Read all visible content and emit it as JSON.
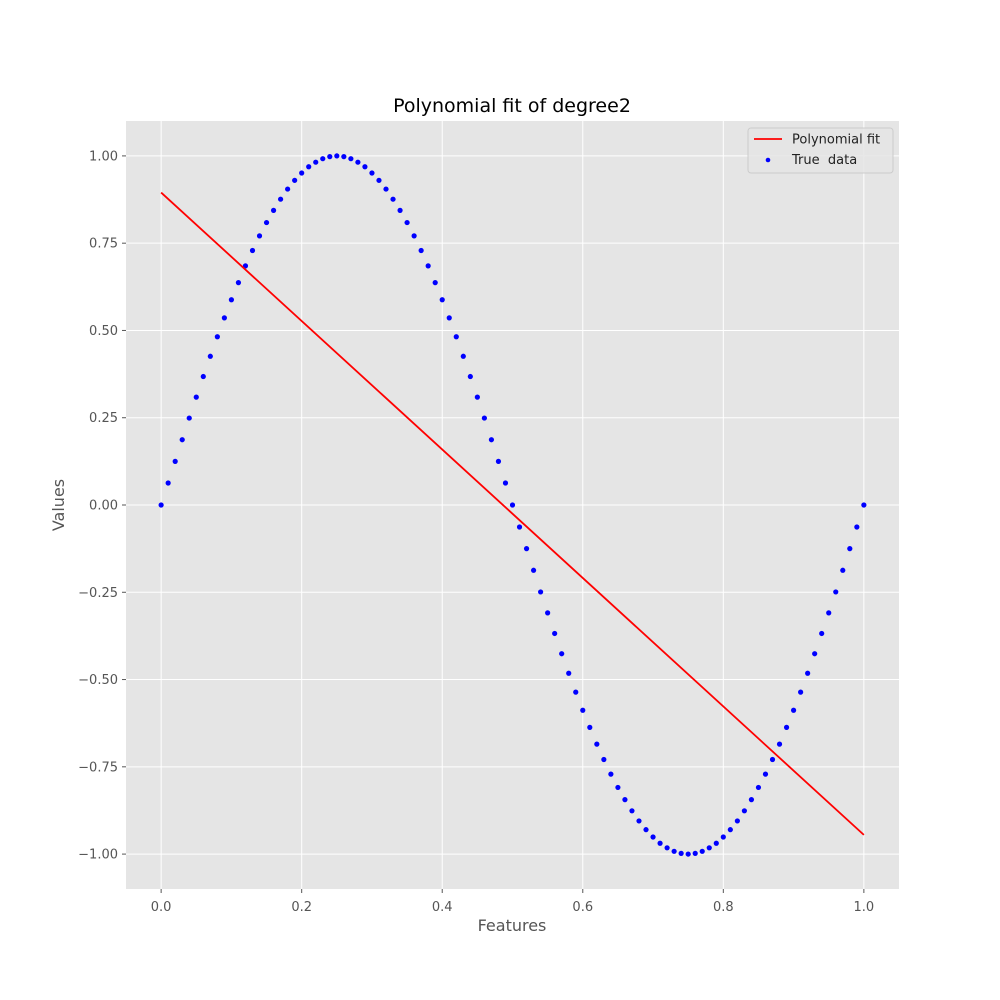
{
  "chart_data": {
    "type": "scatter",
    "title": "Polynomial fit of degree2",
    "xlabel": "Features",
    "ylabel": "Values",
    "xlim": [
      -0.05,
      1.05
    ],
    "ylim": [
      -1.1,
      1.1
    ],
    "x_ticks": [
      0.0,
      0.2,
      0.4,
      0.6,
      0.8,
      1.0
    ],
    "x_tick_labels": [
      "0.0",
      "0.2",
      "0.4",
      "0.6",
      "0.8",
      "1.0"
    ],
    "y_ticks": [
      1.0,
      0.75,
      0.5,
      0.25,
      0.0,
      -0.25,
      -0.5,
      -0.75,
      -1.0
    ],
    "y_tick_labels": [
      "1.00",
      "0.75",
      "0.50",
      "0.25",
      "0.00",
      "−0.25",
      "−0.50",
      "−0.75",
      "−1.00"
    ],
    "grid": true,
    "legend_position": "top-right",
    "background_color": "#e5e5e5",
    "grid_color": "#ffffff",
    "series": [
      {
        "name": "Polynomial fit",
        "kind": "line",
        "color": "#ff0000",
        "x": [
          0.0,
          1.0
        ],
        "y": [
          0.895,
          -0.945
        ]
      },
      {
        "name": "True  data",
        "kind": "scatter",
        "color": "#0000ff",
        "x": [
          0.0,
          0.01,
          0.02,
          0.03,
          0.04,
          0.05,
          0.06,
          0.07,
          0.08,
          0.09,
          0.1,
          0.11,
          0.12,
          0.13,
          0.14,
          0.15,
          0.16,
          0.17,
          0.18,
          0.19,
          0.2,
          0.21,
          0.22,
          0.23,
          0.24,
          0.25,
          0.26,
          0.27,
          0.28,
          0.29,
          0.3,
          0.31,
          0.32,
          0.33,
          0.34,
          0.35,
          0.36,
          0.37,
          0.38,
          0.39,
          0.4,
          0.41,
          0.42,
          0.43,
          0.44,
          0.45,
          0.46,
          0.47,
          0.48,
          0.49,
          0.5,
          0.51,
          0.52,
          0.53,
          0.54,
          0.55,
          0.56,
          0.57,
          0.58,
          0.59,
          0.6,
          0.61,
          0.62,
          0.63,
          0.64,
          0.65,
          0.66,
          0.67,
          0.68,
          0.69,
          0.7,
          0.71,
          0.72,
          0.73,
          0.74,
          0.75,
          0.76,
          0.77,
          0.78,
          0.79,
          0.8,
          0.81,
          0.82,
          0.83,
          0.84,
          0.85,
          0.86,
          0.87,
          0.88,
          0.89,
          0.9,
          0.91,
          0.92,
          0.93,
          0.94,
          0.95,
          0.96,
          0.97,
          0.98,
          0.99,
          1.0
        ],
        "y": [
          0.0,
          0.063,
          0.125,
          0.187,
          0.249,
          0.309,
          0.368,
          0.426,
          0.482,
          0.536,
          0.588,
          0.637,
          0.685,
          0.729,
          0.771,
          0.809,
          0.844,
          0.876,
          0.905,
          0.93,
          0.951,
          0.969,
          0.982,
          0.992,
          0.998,
          1.0,
          0.998,
          0.992,
          0.982,
          0.969,
          0.951,
          0.93,
          0.905,
          0.876,
          0.844,
          0.809,
          0.771,
          0.729,
          0.685,
          0.637,
          0.588,
          0.536,
          0.482,
          0.426,
          0.368,
          0.309,
          0.249,
          0.187,
          0.125,
          0.063,
          0.0,
          -0.063,
          -0.125,
          -0.187,
          -0.249,
          -0.309,
          -0.368,
          -0.426,
          -0.482,
          -0.536,
          -0.588,
          -0.637,
          -0.685,
          -0.729,
          -0.771,
          -0.809,
          -0.844,
          -0.876,
          -0.905,
          -0.93,
          -0.951,
          -0.969,
          -0.982,
          -0.992,
          -0.998,
          -1.0,
          -0.998,
          -0.992,
          -0.982,
          -0.969,
          -0.951,
          -0.93,
          -0.905,
          -0.876,
          -0.844,
          -0.809,
          -0.771,
          -0.729,
          -0.685,
          -0.637,
          -0.588,
          -0.536,
          -0.482,
          -0.426,
          -0.368,
          -0.309,
          -0.249,
          -0.187,
          -0.125,
          -0.063,
          0.0
        ]
      }
    ]
  }
}
